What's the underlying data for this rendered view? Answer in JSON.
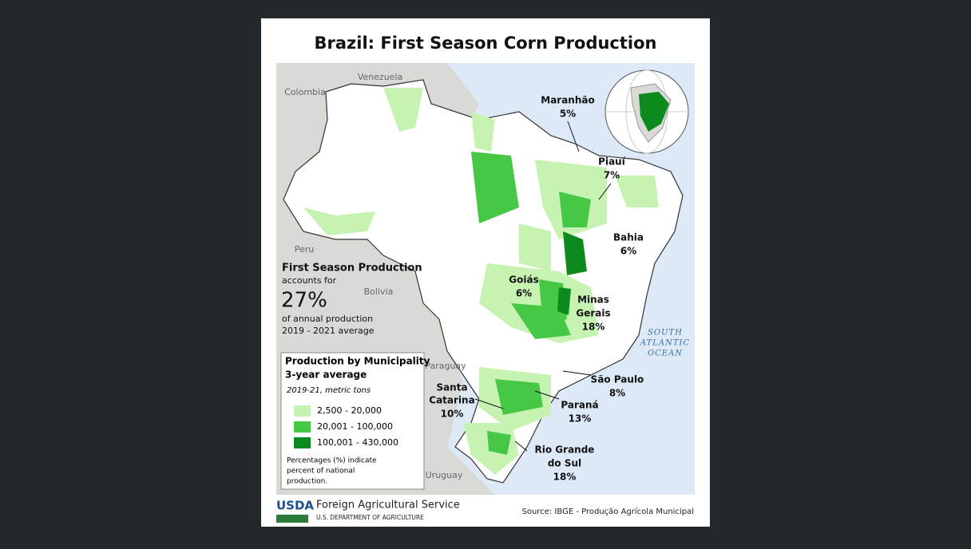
{
  "header": {
    "title": "Brazil: First Season Corn Production"
  },
  "countries": [
    "Venezuela",
    "Colombia",
    "Peru",
    "Bolivia",
    "Paraguay",
    "Uruguay"
  ],
  "ocean": [
    "SOUTH",
    "ATLANTIC",
    "OCEAN"
  ],
  "states": [
    {
      "name": [
        "Maranhão"
      ],
      "share": "5%"
    },
    {
      "name": [
        "Piauí"
      ],
      "share": "7%"
    },
    {
      "name": [
        "Bahia"
      ],
      "share": "6%"
    },
    {
      "name": [
        "Goiás"
      ],
      "share": "6%"
    },
    {
      "name": [
        "Minas",
        "Gerais"
      ],
      "share": "18%"
    },
    {
      "name": [
        "São Paulo"
      ],
      "share": "8%"
    },
    {
      "name": [
        "Paraná"
      ],
      "share": "13%"
    },
    {
      "name": [
        "Santa",
        "Catarina"
      ],
      "share": "10%"
    },
    {
      "name": [
        "Rio Grande",
        "do Sul"
      ],
      "share": "18%"
    }
  ],
  "callout": {
    "heading": "First Season Production",
    "lead": "accounts for",
    "value": "27%",
    "line1": "of annual production",
    "line2": "2019 - 2021 average"
  },
  "legend": {
    "title": [
      "Production by Municipality",
      "3-year average"
    ],
    "subtitle": "2019-21, metric tons",
    "items": [
      {
        "label": "2,500 - 20,000",
        "color": "#c6f3b2"
      },
      {
        "label": "20,001 - 100,000",
        "color": "#46c846"
      },
      {
        "label": "100,001 - 430,000",
        "color": "#0d8a1e"
      }
    ],
    "note": [
      "Percentages (%) indicate",
      "percent of national",
      "production."
    ]
  },
  "footer": {
    "logo": "USDA",
    "agency": "Foreign Agricultural Service",
    "department": "U.S. DEPARTMENT OF AGRICULTURE",
    "source": "Source: IBGE - Produção Agrícola Municipal"
  }
}
